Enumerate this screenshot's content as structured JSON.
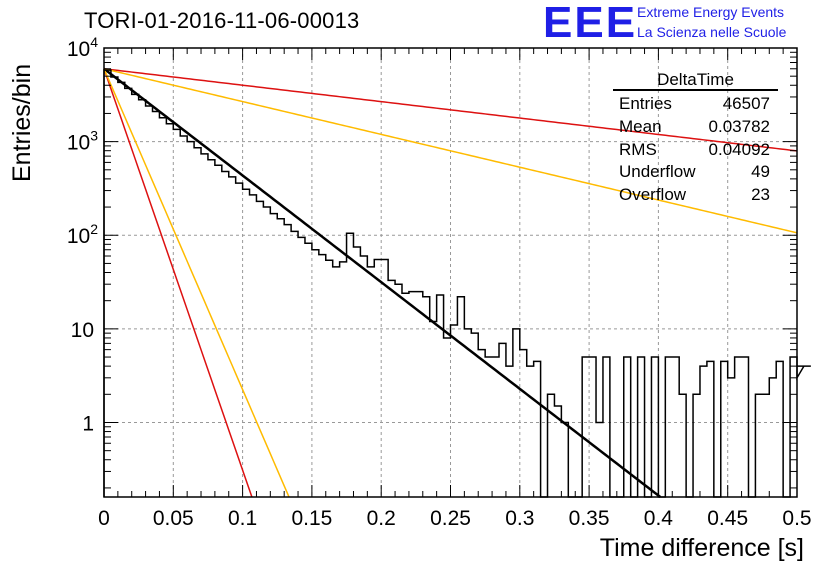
{
  "title": "TORI-01-2016-11-06-00013",
  "logo": {
    "text": "EEE",
    "line1": "Extreme Energy Events",
    "line2": "La Scienza nelle Scuole",
    "color": "#1f1fe6"
  },
  "stats": {
    "title": "DeltaTime",
    "rows": [
      {
        "label": "Entries",
        "value": "46507"
      },
      {
        "label": "Mean",
        "value": "0.03782"
      },
      {
        "label": "RMS",
        "value": "0.04092"
      },
      {
        "label": "Underflow",
        "value": "49"
      },
      {
        "label": "Overflow",
        "value": "23"
      }
    ]
  },
  "chart_data": {
    "type": "histogram",
    "title": "TORI-01-2016-11-06-00013",
    "xlabel": "Time difference [s]",
    "ylabel": "Entries/bin",
    "xlim": [
      0,
      0.5
    ],
    "ylim": [
      0.16,
      10000
    ],
    "yscale": "log",
    "grid": true,
    "xticks": [
      "0",
      "0.05",
      "0.1",
      "0.15",
      "0.2",
      "0.25",
      "0.3",
      "0.35",
      "0.4",
      "0.45",
      "0.5"
    ],
    "yticks": [
      {
        "label": "1",
        "value": 1
      },
      {
        "label": "10",
        "value": 10
      },
      {
        "label": "10^2",
        "base": "10",
        "exp": "2",
        "value": 100
      },
      {
        "label": "10^3",
        "base": "10",
        "exp": "3",
        "value": 1000
      },
      {
        "label": "10^4",
        "base": "10",
        "exp": "4",
        "value": 10000
      }
    ],
    "histogram": {
      "bin_width": 0.005,
      "color": "#000000",
      "values": [
        5800,
        4900,
        4300,
        3700,
        3200,
        2800,
        2400,
        2100,
        1800,
        1550,
        1350,
        1150,
        1000,
        860,
        740,
        640,
        560,
        480,
        420,
        360,
        310,
        270,
        230,
        200,
        170,
        150,
        130,
        110,
        95,
        82,
        70,
        62,
        54,
        46,
        52,
        105,
        75,
        60,
        46,
        55,
        55,
        33,
        30,
        24,
        25,
        25,
        22,
        12,
        23,
        8,
        11,
        22,
        10,
        9,
        6,
        5,
        5,
        7,
        4,
        10,
        6,
        4,
        4.5,
        0,
        2,
        1.5,
        1,
        0,
        0,
        5,
        5,
        1,
        5,
        0,
        0,
        5,
        0,
        5,
        0,
        5,
        0,
        5,
        5,
        2,
        0,
        2,
        4,
        4.5,
        0,
        4.5,
        3,
        5,
        5,
        0,
        2,
        2,
        3,
        4.5,
        0,
        5,
        3,
        4,
        4
      ]
    },
    "curves": [
      {
        "name": "fit",
        "color": "#000000",
        "width": 2.5,
        "x0": 0,
        "y0": 6000,
        "slope_per_s": -26.24
      },
      {
        "color": "#dd1111",
        "width": 1.5,
        "x0": 0,
        "y0": 6000,
        "slope_per_s": -4.04
      },
      {
        "color": "#dd1111",
        "width": 1.5,
        "x0": 0,
        "y0": 6000,
        "slope_per_s": -98.7
      },
      {
        "color": "#ffbb00",
        "width": 1.5,
        "x0": 0,
        "y0": 6000,
        "slope_per_s": -8.07
      },
      {
        "color": "#ffbb00",
        "width": 1.5,
        "x0": 0,
        "y0": 6000,
        "slope_per_s": -78.9
      }
    ]
  }
}
